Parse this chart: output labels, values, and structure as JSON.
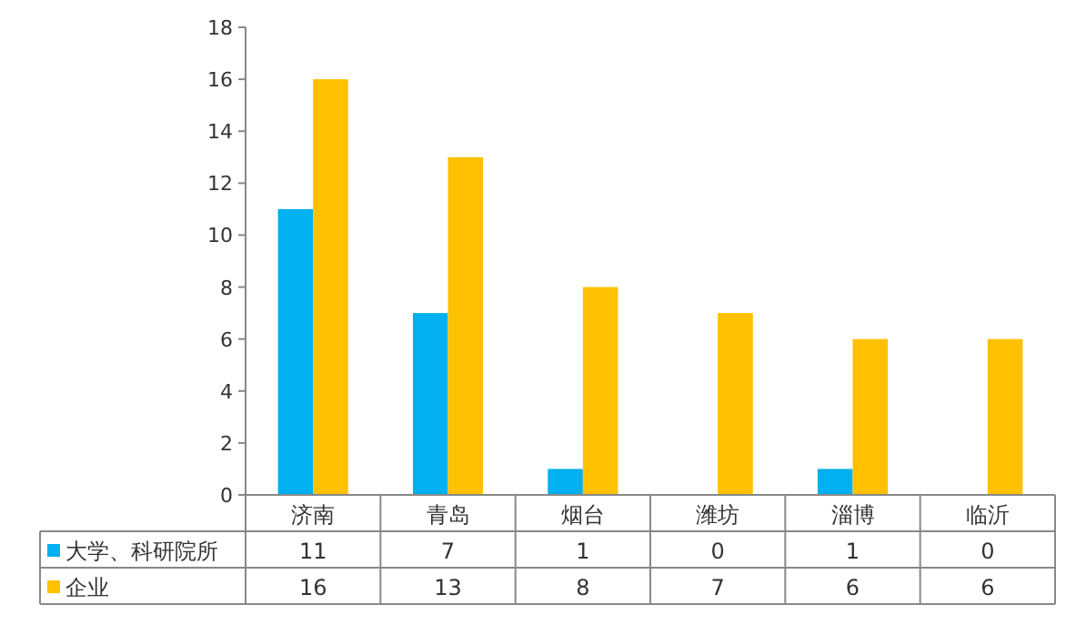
{
  "chart_data": {
    "type": "bar",
    "categories": [
      "济南",
      "青岛",
      "烟台",
      "潍坊",
      "淄博",
      "临沂"
    ],
    "series": [
      {
        "name": "大学、科研院所",
        "color": "#00b0f0",
        "values": [
          11,
          7,
          1,
          0,
          1,
          0
        ]
      },
      {
        "name": "企业",
        "color": "#ffc000",
        "values": [
          16,
          13,
          8,
          7,
          6,
          6
        ]
      }
    ],
    "ylim": [
      0,
      18
    ],
    "yticks": [
      0,
      2,
      4,
      6,
      8,
      10,
      12,
      14,
      16,
      18
    ],
    "grid": false,
    "legend": "bottom",
    "data_labels": true
  }
}
